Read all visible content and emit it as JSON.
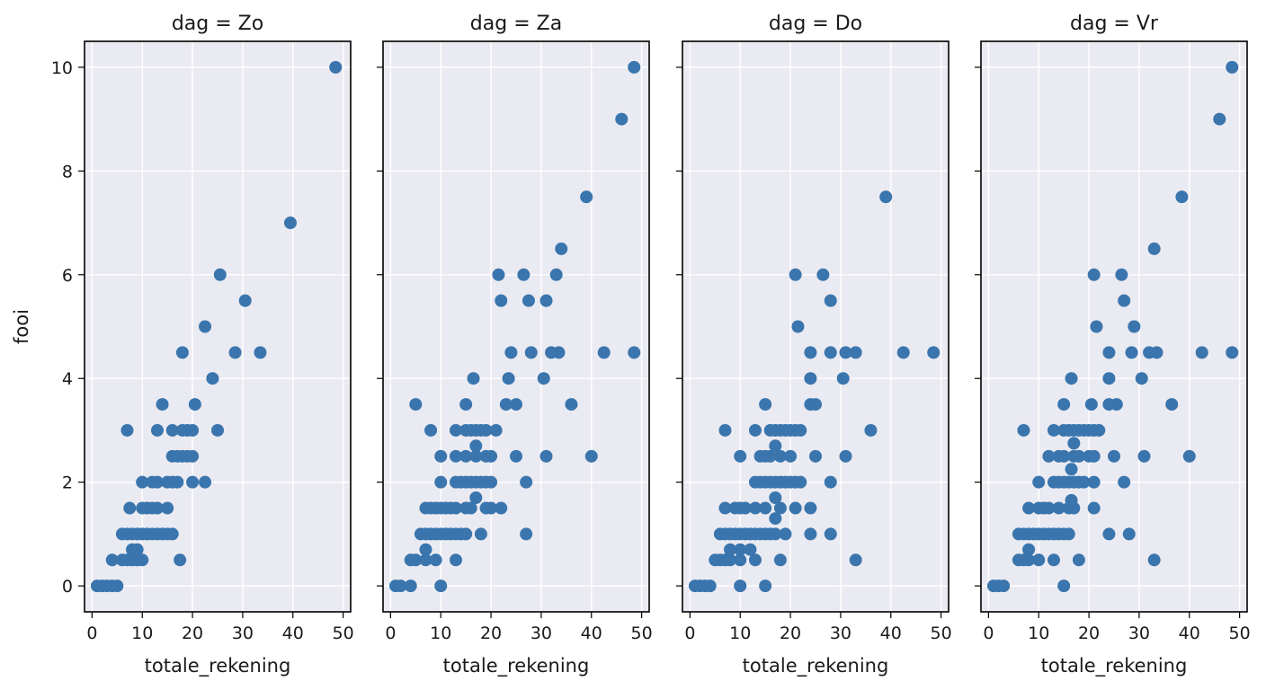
{
  "chart_data": {
    "type": "scatter",
    "facet_by": "dag",
    "xlabel": "totale_rekening",
    "ylabel": "fooi",
    "xlim": [
      -1.5,
      51.5
    ],
    "ylim": [
      -0.5,
      10.5
    ],
    "xticks": [
      0,
      10,
      20,
      30,
      40,
      50
    ],
    "yticks": [
      0,
      2,
      4,
      6,
      8,
      10
    ],
    "grid": true,
    "point_color": "#3a75ad",
    "panel_background": "#eaeaf2",
    "panels": [
      {
        "title": "dag = Zo",
        "points": [
          [
            1,
            0
          ],
          [
            2,
            0
          ],
          [
            3,
            0
          ],
          [
            4,
            0
          ],
          [
            5,
            0
          ],
          [
            4,
            0.5
          ],
          [
            6,
            0.5
          ],
          [
            7,
            0.5
          ],
          [
            8,
            0.5
          ],
          [
            9,
            0.5
          ],
          [
            10,
            0.5
          ],
          [
            17.5,
            0.5
          ],
          [
            8,
            0.7
          ],
          [
            9,
            0.7
          ],
          [
            6,
            1
          ],
          [
            7,
            1
          ],
          [
            8,
            1
          ],
          [
            9,
            1
          ],
          [
            10,
            1
          ],
          [
            11,
            1
          ],
          [
            12,
            1
          ],
          [
            13,
            1
          ],
          [
            14,
            1
          ],
          [
            15,
            1
          ],
          [
            16,
            1
          ],
          [
            7.5,
            1.5
          ],
          [
            10,
            1.5
          ],
          [
            11,
            1.5
          ],
          [
            12,
            1.5
          ],
          [
            13,
            1.5
          ],
          [
            15,
            1.5
          ],
          [
            10,
            2
          ],
          [
            12,
            2
          ],
          [
            13,
            2
          ],
          [
            15,
            2
          ],
          [
            16,
            2
          ],
          [
            17,
            2
          ],
          [
            20,
            2
          ],
          [
            22.5,
            2
          ],
          [
            16,
            2.5
          ],
          [
            17,
            2.5
          ],
          [
            18,
            2.5
          ],
          [
            19,
            2.5
          ],
          [
            20,
            2.5
          ],
          [
            7,
            3
          ],
          [
            13,
            3
          ],
          [
            16,
            3
          ],
          [
            18,
            3
          ],
          [
            19,
            3
          ],
          [
            20,
            3
          ],
          [
            25,
            3
          ],
          [
            14,
            3.5
          ],
          [
            20.5,
            3.5
          ],
          [
            24,
            4
          ],
          [
            18,
            4.5
          ],
          [
            28.5,
            4.5
          ],
          [
            33.5,
            4.5
          ],
          [
            22.5,
            5
          ],
          [
            30.5,
            5.5
          ],
          [
            25.5,
            6
          ],
          [
            39.5,
            7
          ],
          [
            48.5,
            10
          ]
        ]
      },
      {
        "title": "dag = Za",
        "points": [
          [
            1,
            0
          ],
          [
            2,
            0
          ],
          [
            4,
            0
          ],
          [
            10,
            0
          ],
          [
            4,
            0.5
          ],
          [
            5,
            0.5
          ],
          [
            7,
            0.5
          ],
          [
            9,
            0.5
          ],
          [
            13,
            0.5
          ],
          [
            7,
            0.7
          ],
          [
            6,
            1
          ],
          [
            7,
            1
          ],
          [
            8,
            1
          ],
          [
            9,
            1
          ],
          [
            10,
            1
          ],
          [
            11,
            1
          ],
          [
            12,
            1
          ],
          [
            13,
            1
          ],
          [
            14,
            1
          ],
          [
            15,
            1
          ],
          [
            18,
            1
          ],
          [
            27,
            1
          ],
          [
            7,
            1.5
          ],
          [
            8,
            1.5
          ],
          [
            9,
            1.5
          ],
          [
            10,
            1.5
          ],
          [
            11,
            1.5
          ],
          [
            12,
            1.5
          ],
          [
            13,
            1.5
          ],
          [
            15,
            1.5
          ],
          [
            16,
            1.5
          ],
          [
            19,
            1.5
          ],
          [
            20,
            1.5
          ],
          [
            22,
            1.5
          ],
          [
            17,
            1.7
          ],
          [
            10,
            2
          ],
          [
            13,
            2
          ],
          [
            14,
            2
          ],
          [
            15,
            2
          ],
          [
            16,
            2
          ],
          [
            17,
            2
          ],
          [
            18,
            2
          ],
          [
            19,
            2
          ],
          [
            20,
            2
          ],
          [
            27,
            2
          ],
          [
            10,
            2.5
          ],
          [
            13,
            2.5
          ],
          [
            15,
            2.5
          ],
          [
            17,
            2.5
          ],
          [
            19,
            2.5
          ],
          [
            20,
            2.5
          ],
          [
            25,
            2.5
          ],
          [
            31,
            2.5
          ],
          [
            40,
            2.5
          ],
          [
            17,
            2.7
          ],
          [
            8,
            3
          ],
          [
            13,
            3
          ],
          [
            15,
            3
          ],
          [
            16,
            3
          ],
          [
            17,
            3
          ],
          [
            18,
            3
          ],
          [
            19,
            3
          ],
          [
            21,
            3
          ],
          [
            5,
            3.5
          ],
          [
            15,
            3.5
          ],
          [
            23,
            3.5
          ],
          [
            25,
            3.5
          ],
          [
            36,
            3.5
          ],
          [
            16.5,
            4
          ],
          [
            23.5,
            4
          ],
          [
            30.5,
            4
          ],
          [
            24,
            4.5
          ],
          [
            28,
            4.5
          ],
          [
            32,
            4.5
          ],
          [
            33.5,
            4.5
          ],
          [
            42.5,
            4.5
          ],
          [
            48.5,
            4.5
          ],
          [
            22,
            5.5
          ],
          [
            27.5,
            5.5
          ],
          [
            31,
            5.5
          ],
          [
            21.5,
            6
          ],
          [
            26.5,
            6
          ],
          [
            33,
            6
          ],
          [
            34,
            6.5
          ],
          [
            39,
            7.5
          ],
          [
            46,
            9
          ],
          [
            48.5,
            10
          ]
        ]
      },
      {
        "title": "dag = Do",
        "points": [
          [
            1,
            0
          ],
          [
            2,
            0
          ],
          [
            3,
            0
          ],
          [
            4,
            0
          ],
          [
            10,
            0
          ],
          [
            15,
            0
          ],
          [
            5,
            0.5
          ],
          [
            6,
            0.5
          ],
          [
            7,
            0.5
          ],
          [
            8,
            0.5
          ],
          [
            10,
            0.5
          ],
          [
            13,
            0.5
          ],
          [
            18,
            0.5
          ],
          [
            33,
            0.5
          ],
          [
            8,
            0.7
          ],
          [
            10,
            0.7
          ],
          [
            12,
            0.7
          ],
          [
            6,
            1
          ],
          [
            7,
            1
          ],
          [
            8,
            1
          ],
          [
            9,
            1
          ],
          [
            10,
            1
          ],
          [
            11,
            1
          ],
          [
            12,
            1
          ],
          [
            13,
            1
          ],
          [
            14,
            1
          ],
          [
            15,
            1
          ],
          [
            16,
            1
          ],
          [
            17,
            1
          ],
          [
            19,
            1
          ],
          [
            24,
            1
          ],
          [
            28,
            1
          ],
          [
            7,
            1.5
          ],
          [
            9,
            1.5
          ],
          [
            10,
            1.5
          ],
          [
            11,
            1.5
          ],
          [
            13,
            1.5
          ],
          [
            15,
            1.5
          ],
          [
            18,
            1.5
          ],
          [
            21,
            1.5
          ],
          [
            24,
            1.5
          ],
          [
            17,
            1.3
          ],
          [
            17,
            1.7
          ],
          [
            13,
            2
          ],
          [
            14,
            2
          ],
          [
            15,
            2
          ],
          [
            16,
            2
          ],
          [
            17,
            2
          ],
          [
            18,
            2
          ],
          [
            19,
            2
          ],
          [
            20,
            2
          ],
          [
            21,
            2
          ],
          [
            22,
            2
          ],
          [
            28,
            2
          ],
          [
            10,
            2.5
          ],
          [
            14,
            2.5
          ],
          [
            15,
            2.5
          ],
          [
            16,
            2.5
          ],
          [
            18,
            2.5
          ],
          [
            20,
            2.5
          ],
          [
            25,
            2.5
          ],
          [
            31,
            2.5
          ],
          [
            17,
            2.7
          ],
          [
            7,
            3
          ],
          [
            13,
            3
          ],
          [
            16,
            3
          ],
          [
            17,
            3
          ],
          [
            18,
            3
          ],
          [
            19,
            3
          ],
          [
            20,
            3
          ],
          [
            21,
            3
          ],
          [
            22,
            3
          ],
          [
            36,
            3
          ],
          [
            15,
            3.5
          ],
          [
            24,
            3.5
          ],
          [
            25,
            3.5
          ],
          [
            24,
            4
          ],
          [
            30.5,
            4
          ],
          [
            24,
            4.5
          ],
          [
            28,
            4.5
          ],
          [
            31,
            4.5
          ],
          [
            33,
            4.5
          ],
          [
            42.5,
            4.5
          ],
          [
            48.5,
            4.5
          ],
          [
            21.5,
            5
          ],
          [
            28,
            5.5
          ],
          [
            21,
            6
          ],
          [
            26.5,
            6
          ],
          [
            39,
            7.5
          ]
        ]
      },
      {
        "title": "dag = Vr",
        "points": [
          [
            1,
            0
          ],
          [
            2,
            0
          ],
          [
            3,
            0
          ],
          [
            15,
            0
          ],
          [
            6,
            0.5
          ],
          [
            7,
            0.5
          ],
          [
            8,
            0.5
          ],
          [
            10,
            0.5
          ],
          [
            13,
            0.5
          ],
          [
            18,
            0.5
          ],
          [
            33,
            0.5
          ],
          [
            8,
            0.7
          ],
          [
            6,
            1
          ],
          [
            7,
            1
          ],
          [
            8,
            1
          ],
          [
            9,
            1
          ],
          [
            10,
            1
          ],
          [
            11,
            1
          ],
          [
            12,
            1
          ],
          [
            13,
            1
          ],
          [
            14,
            1
          ],
          [
            15,
            1
          ],
          [
            16,
            1
          ],
          [
            24,
            1
          ],
          [
            28,
            1
          ],
          [
            8,
            1.5
          ],
          [
            10,
            1.5
          ],
          [
            11,
            1.5
          ],
          [
            12,
            1.5
          ],
          [
            14,
            1.5
          ],
          [
            16,
            1.5
          ],
          [
            17,
            1.5
          ],
          [
            21,
            1.5
          ],
          [
            16.5,
            1.65
          ],
          [
            16.5,
            2.25
          ],
          [
            10,
            2
          ],
          [
            13,
            2
          ],
          [
            14,
            2
          ],
          [
            15,
            2
          ],
          [
            16,
            2
          ],
          [
            17,
            2
          ],
          [
            18,
            2
          ],
          [
            19,
            2
          ],
          [
            21,
            2
          ],
          [
            27,
            2
          ],
          [
            12,
            2.5
          ],
          [
            14,
            2.5
          ],
          [
            15,
            2.5
          ],
          [
            17,
            2.5
          ],
          [
            18,
            2.5
          ],
          [
            20,
            2.5
          ],
          [
            21,
            2.5
          ],
          [
            25,
            2.5
          ],
          [
            31,
            2.5
          ],
          [
            40,
            2.5
          ],
          [
            17,
            2.75
          ],
          [
            7,
            3
          ],
          [
            13,
            3
          ],
          [
            15,
            3
          ],
          [
            16,
            3
          ],
          [
            17,
            3
          ],
          [
            18,
            3
          ],
          [
            19,
            3
          ],
          [
            20,
            3
          ],
          [
            21,
            3
          ],
          [
            22,
            3
          ],
          [
            15,
            3.5
          ],
          [
            20.5,
            3.5
          ],
          [
            24,
            3.5
          ],
          [
            25.5,
            3.5
          ],
          [
            36.5,
            3.5
          ],
          [
            16.5,
            4
          ],
          [
            24,
            4
          ],
          [
            30.5,
            4
          ],
          [
            24,
            4.5
          ],
          [
            28.5,
            4.5
          ],
          [
            32,
            4.5
          ],
          [
            33.5,
            4.5
          ],
          [
            42.5,
            4.5
          ],
          [
            48.5,
            4.5
          ],
          [
            21.5,
            5
          ],
          [
            29,
            5
          ],
          [
            27,
            5.5
          ],
          [
            21,
            6
          ],
          [
            26.5,
            6
          ],
          [
            33,
            6.5
          ],
          [
            38.5,
            7.5
          ],
          [
            46,
            9
          ],
          [
            48.5,
            10
          ]
        ]
      }
    ]
  }
}
